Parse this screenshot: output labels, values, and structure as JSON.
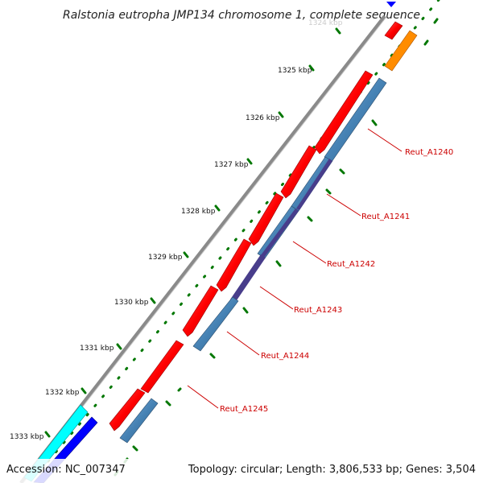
{
  "title": "Ralstonia eutropha JMP134 chromosome 1, complete sequence",
  "footer": {
    "accession": "Accession: NC_007347",
    "summary": "Topology: circular; Length: 3,806,533 bp; Genes: 3,504"
  },
  "ticks": [
    {
      "label": "1324 kbp",
      "faded": true
    },
    {
      "label": "1325 kbp"
    },
    {
      "label": "1326 kbp"
    },
    {
      "label": "1327 kbp"
    },
    {
      "label": "1328 kbp"
    },
    {
      "label": "1329 kbp"
    },
    {
      "label": "1330 kbp"
    },
    {
      "label": "1331 kbp"
    },
    {
      "label": "1332 kbp"
    },
    {
      "label": "1333 kbp"
    }
  ],
  "gene_labels": [
    "Reut_A1240",
    "Reut_A1241",
    "Reut_A1242",
    "Reut_A1243",
    "Reut_A1244",
    "Reut_A1245"
  ],
  "colors": {
    "backbone": "#888888",
    "cds_forward": "#ff0000",
    "cds_reverse": "#4682b4",
    "cds_other": "#483d8b",
    "orange_feature": "#ff8c00",
    "cyan_feature": "#00ffff",
    "blue_feature": "#0000ff",
    "tick_dots": "#007700",
    "label_text": "#cc0000"
  }
}
